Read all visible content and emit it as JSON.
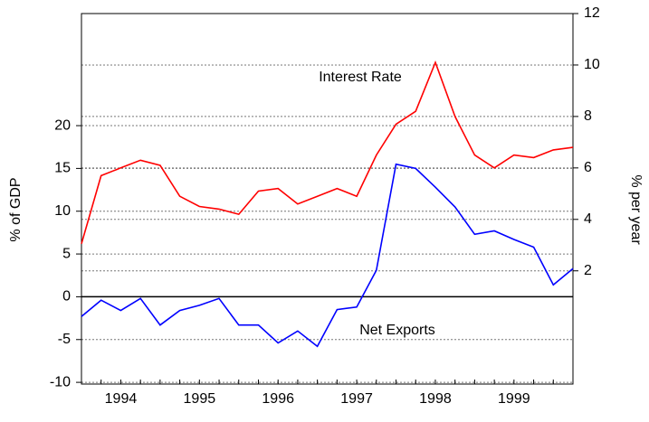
{
  "chart_data": {
    "type": "line",
    "x": [
      1994,
      1994.25,
      1994.5,
      1994.75,
      1995,
      1995.25,
      1995.5,
      1995.75,
      1996,
      1996.25,
      1996.5,
      1996.75,
      1997,
      1997.25,
      1997.5,
      1997.75,
      1998,
      1998.25,
      1998.5,
      1998.75,
      1999,
      1999.25,
      1999.5,
      1999.75,
      2000,
      2000.25
    ],
    "xlim": [
      1994,
      2000.25
    ],
    "xticks": [
      {
        "value": 1994.5,
        "label": "1994"
      },
      {
        "value": 1995.5,
        "label": "1995"
      },
      {
        "value": 1996.5,
        "label": "1996"
      },
      {
        "value": 1997.5,
        "label": "1997"
      },
      {
        "value": 1998.5,
        "label": "1998"
      },
      {
        "value": 1999.5,
        "label": "1999"
      }
    ],
    "ylabel": "% of GDP",
    "y2label": "% per year",
    "ylim": [
      -10.2,
      33.1
    ],
    "yticks": [
      -10,
      -5,
      0,
      5,
      10,
      15,
      20
    ],
    "y2lim": [
      -2.4,
      12
    ],
    "y2ticks": [
      2,
      4,
      6,
      8,
      10,
      12
    ],
    "grid": true,
    "series": [
      {
        "name": "Net Exports",
        "color": "#0000ff",
        "values": [
          -2.3,
          -0.4,
          -1.6,
          -0.2,
          -3.3,
          -1.6,
          -1.0,
          -0.2,
          -3.3,
          -3.3,
          -5.4,
          -4.0,
          -5.8,
          -1.5,
          -1.2,
          3.1,
          15.5,
          15.0,
          12.8,
          10.5,
          7.3,
          7.7,
          6.7,
          5.8,
          1.4,
          3.3
        ]
      },
      {
        "name": "Interest Rate",
        "color": "#ff0000",
        "axis": "y2",
        "values": [
          3.05,
          5.7,
          6.0,
          6.3,
          6.1,
          4.9,
          4.5,
          4.4,
          4.2,
          5.1,
          5.2,
          4.6,
          4.9,
          5.2,
          4.9,
          6.5,
          7.7,
          8.2,
          10.1,
          8.0,
          6.5,
          6.0,
          6.5,
          6.4,
          6.7,
          6.8
        ]
      }
    ]
  }
}
